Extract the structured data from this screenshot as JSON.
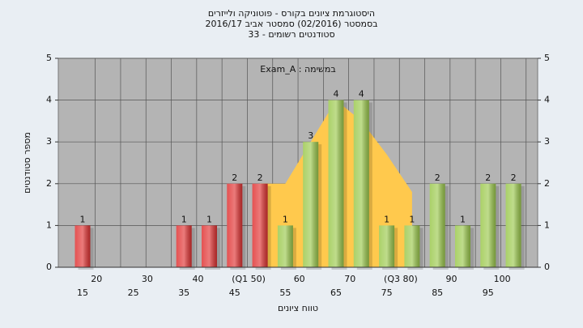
{
  "chart_data": {
    "type": "bar",
    "title": "היסטוגרמת ציונים בקורס - פוטוניקה ולייזרים",
    "subtitle": "בסמסטר  (02/2016)  סמסטר אביב 2016/17",
    "subtitle2": "סטודנטים רשומים - 33",
    "annotation": "Exam_A : במשימה",
    "x_label": "טווח ציונים",
    "y_label": "מספר סטודנטים",
    "categories": [
      "15",
      "20",
      "25",
      "30",
      "35",
      "40",
      "45",
      "(Q1 50)",
      "55",
      "60",
      "65",
      "70",
      "75",
      "(Q3 80)",
      "85",
      "90",
      "95",
      "100"
    ],
    "values": [
      1,
      0,
      0,
      0,
      1,
      1,
      2,
      2,
      1,
      3,
      4,
      4,
      1,
      1,
      2,
      1,
      2,
      2
    ],
    "colors": [
      "#e03333",
      "#e03333",
      "#e03333",
      "#e03333",
      "#e03333",
      "#e03333",
      "#e03333",
      "#e03333",
      "#9cc94e",
      "#9cc94e",
      "#9cc94e",
      "#9cc94e",
      "#9cc94e",
      "#9cc94e",
      "#9cc94e",
      "#9cc94e",
      "#9cc94e",
      "#9cc94e"
    ],
    "area": {
      "color": "#ffc94d",
      "values": [
        null,
        null,
        null,
        null,
        null,
        null,
        null,
        2,
        2,
        3,
        4,
        3.5,
        2.7,
        1.8,
        null,
        null,
        null,
        null
      ]
    },
    "ylim": [
      0,
      5
    ],
    "yticks": [
      0,
      1,
      2,
      3,
      4,
      5
    ],
    "y2lim": [
      0,
      5
    ],
    "y2ticks": [
      0,
      1,
      2,
      3,
      4,
      5
    ],
    "grid": true
  }
}
